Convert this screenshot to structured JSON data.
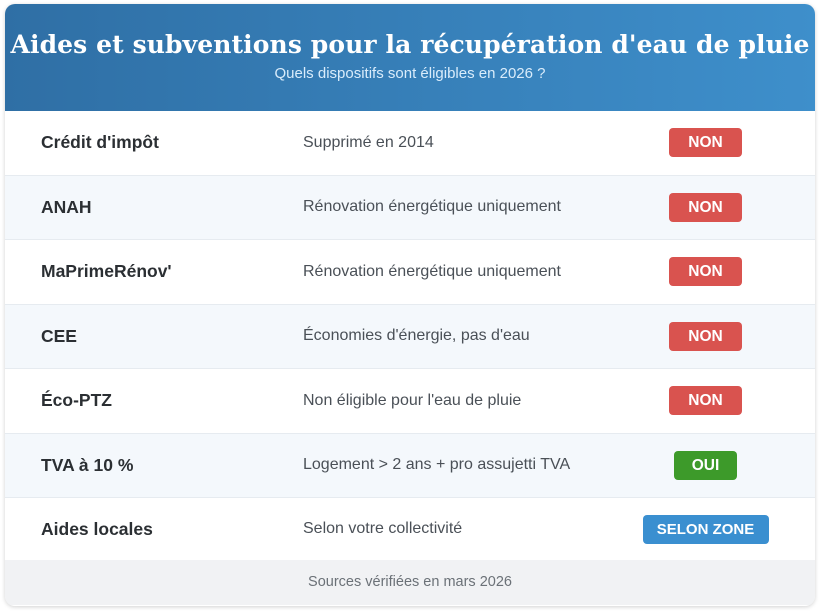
{
  "header": {
    "title": "Aides et subventions pour la récupération d'eau de pluie",
    "subtitle": "Quels dispositifs sont éligibles en 2026 ?"
  },
  "rows": [
    {
      "name": "Crédit d'impôt",
      "desc": "Supprimé en 2014",
      "status": "NON",
      "status_type": "non"
    },
    {
      "name": "ANAH",
      "desc": "Rénovation énergétique uniquement",
      "status": "NON",
      "status_type": "non"
    },
    {
      "name": "MaPrimeRénov'",
      "desc": "Rénovation énergétique uniquement",
      "status": "NON",
      "status_type": "non"
    },
    {
      "name": "CEE",
      "desc": "Économies d'énergie, pas d'eau",
      "status": "NON",
      "status_type": "non"
    },
    {
      "name": "Éco-PTZ",
      "desc": "Non éligible pour l'eau de pluie",
      "status": "NON",
      "status_type": "non"
    },
    {
      "name": "TVA à 10 %",
      "desc": "Logement > 2 ans + pro assujetti TVA",
      "status": "OUI",
      "status_type": "oui"
    },
    {
      "name": "Aides locales",
      "desc": "Selon votre collectivité",
      "status": "SELON ZONE",
      "status_type": "zone"
    }
  ],
  "colors": {
    "header_start": "#2f6fa5",
    "header_end": "#3e8fcb",
    "non": "#d9534f",
    "oui": "#3d9a2a",
    "zone": "#3a8fd0"
  },
  "footer": {
    "text": "Sources vérifiées en mars 2026"
  }
}
